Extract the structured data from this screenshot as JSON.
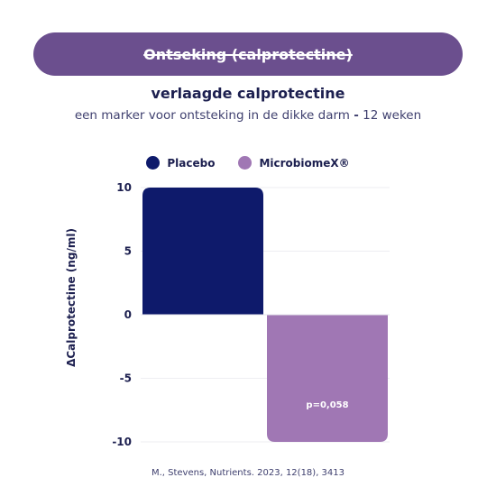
{
  "banner": {
    "title": "Ontseking (calprotectine)"
  },
  "subtitle": "verlaagde calprotectine",
  "description": {
    "text": "een marker voor ontsteking in de dikke darm",
    "separator": "-",
    "duration": "12 weken"
  },
  "citation": "M., Stevens, Nutrients. 2023, 12(18), 3413",
  "colors": {
    "banner": "#6b4f8e",
    "placebo": "#0e1a6b",
    "microbiome": "#a077b4",
    "text": "#1c1f4f"
  },
  "chart_data": {
    "type": "bar",
    "categories": [
      "Placebo",
      "MicrobiomeX®"
    ],
    "series": [
      {
        "name": "Placebo",
        "values": [
          10,
          null
        ],
        "color": "#0e1a6b"
      },
      {
        "name": "MicrobiomeX®",
        "values": [
          null,
          -10
        ],
        "color": "#a077b4",
        "data_label": "p=0,058"
      }
    ],
    "ylabel": "ΔCalprotectine (ng/ml)",
    "ylim": [
      -10,
      10
    ],
    "yticks": [
      10,
      5,
      0,
      -5,
      -10
    ],
    "ytick_labels": [
      "10",
      "5",
      "0",
      "-5",
      "-10"
    ],
    "grid": true,
    "legend": "top-center"
  }
}
